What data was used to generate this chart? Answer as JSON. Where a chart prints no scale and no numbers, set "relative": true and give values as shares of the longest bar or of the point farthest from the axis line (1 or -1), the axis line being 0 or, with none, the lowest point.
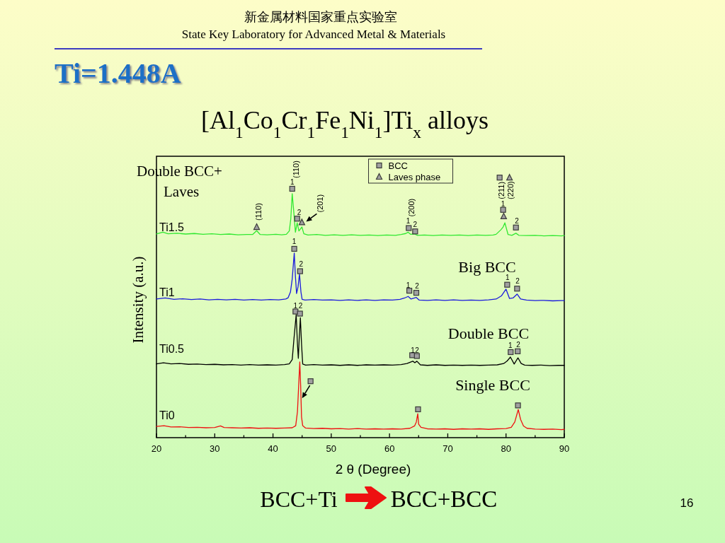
{
  "chart_data": {
    "type": "line",
    "relative": true,
    "title": "[Al$_{1}$Co$_{1}$Cr$_{1}$Fe$_{1}$Ni$_{1}$]Ti$_{x}$ alloys",
    "xlabel": "2 θ (Degree)",
    "ylabel": "Intensity (a.u.)",
    "xlim": [
      20,
      90
    ],
    "xticks": [
      20,
      {
        "value": 25,
        "label": null
      },
      30,
      {
        "value": 35,
        "label": null
      },
      40,
      {
        "value": 45,
        "label": null
      },
      50,
      {
        "value": 55,
        "label": null
      },
      60,
      {
        "value": 65,
        "label": null
      },
      70,
      {
        "value": 75,
        "label": null
      },
      80,
      {
        "value": 85,
        "label": null
      },
      90
    ],
    "legend": "top",
    "series": [
      {
        "name": "Ti1.5",
        "color": "#30e830",
        "x": [
          20,
          21.1,
          22,
          23.5,
          25,
          26.5,
          28,
          29.5,
          31,
          32.5,
          34,
          35.5,
          36.5,
          37.2,
          37.8,
          39,
          40.5,
          41.5,
          42.3,
          42.8,
          43.05,
          43.3,
          43.6,
          43.85,
          44.15,
          44.45,
          44.96,
          45.3,
          46,
          47.5,
          49,
          50.5,
          52,
          53.5,
          55,
          56.5,
          58,
          59.5,
          61,
          62,
          62.8,
          63.2,
          63.6,
          64.3,
          64.8,
          66,
          67.5,
          69,
          70.5,
          72,
          73.5,
          75,
          76.5,
          77.8,
          78.3,
          79.1,
          79.5,
          79.8,
          80.35,
          81,
          81.7,
          82.2,
          83.5,
          85,
          86.5,
          88,
          89.5,
          90
        ],
        "values": [
          0.783,
          0.79,
          0.784,
          0.786,
          0.783,
          0.785,
          0.782,
          0.784,
          0.781,
          0.783,
          0.78,
          0.781,
          0.781,
          0.796,
          0.781,
          0.78,
          0.782,
          0.78,
          0.782,
          0.795,
          0.84,
          0.938,
          0.86,
          0.79,
          0.826,
          0.795,
          0.81,
          0.784,
          0.779,
          0.781,
          0.778,
          0.78,
          0.778,
          0.78,
          0.778,
          0.779,
          0.777,
          0.779,
          0.778,
          0.781,
          0.785,
          0.79,
          0.782,
          0.783,
          0.778,
          0.779,
          0.777,
          0.779,
          0.778,
          0.779,
          0.777,
          0.779,
          0.778,
          0.779,
          0.782,
          0.799,
          0.81,
          0.826,
          0.781,
          0.778,
          0.786,
          0.778,
          0.777,
          0.778,
          0.776,
          0.777,
          0.776,
          0.777
        ]
      },
      {
        "name": "Ti1",
        "color": "#1a1adc",
        "x": [
          20,
          21.5,
          23,
          24.5,
          26,
          27.5,
          29,
          30.5,
          32,
          33.5,
          35,
          36.5,
          38,
          39.5,
          41,
          42.2,
          42.6,
          43.0,
          43.3,
          43.65,
          43.85,
          44.05,
          44.3,
          44.55,
          44.8,
          45.0,
          45.5,
          47,
          48.5,
          50,
          51.5,
          53,
          54.5,
          56,
          57.5,
          59,
          60.5,
          61.8,
          62.6,
          63.2,
          63.7,
          64.6,
          65.1,
          66.5,
          68,
          69.5,
          71,
          72.5,
          74,
          75.5,
          77,
          78.3,
          79.2,
          80.0,
          80.6,
          81.2,
          81.9,
          82.5,
          83.5,
          85,
          86.5,
          88,
          89.5,
          90
        ],
        "values": [
          0.533,
          0.537,
          0.532,
          0.534,
          0.531,
          0.533,
          0.53,
          0.532,
          0.53,
          0.532,
          0.529,
          0.531,
          0.529,
          0.531,
          0.53,
          0.533,
          0.538,
          0.56,
          0.61,
          0.71,
          0.62,
          0.554,
          0.58,
          0.629,
          0.56,
          0.532,
          0.529,
          0.531,
          0.529,
          0.53,
          0.528,
          0.53,
          0.528,
          0.53,
          0.528,
          0.53,
          0.529,
          0.532,
          0.537,
          0.543,
          0.533,
          0.539,
          0.529,
          0.528,
          0.53,
          0.528,
          0.53,
          0.528,
          0.529,
          0.528,
          0.53,
          0.533,
          0.545,
          0.571,
          0.535,
          0.537,
          0.552,
          0.533,
          0.529,
          0.527,
          0.528,
          0.526,
          0.527,
          0.527
        ]
      },
      {
        "name": "Ti0.5",
        "color": "#000000",
        "x": [
          20,
          21.2,
          22.5,
          24,
          25.5,
          27,
          28.5,
          30,
          31.5,
          33,
          34.5,
          36,
          37.5,
          39,
          40.5,
          42,
          42.8,
          43.3,
          43.6,
          43.98,
          44.2,
          44.35,
          44.5,
          44.7,
          44.9,
          45.1,
          45.6,
          47,
          48.5,
          50,
          51.5,
          53,
          54.5,
          56,
          57.5,
          59,
          60.5,
          62,
          63,
          64.0,
          64.35,
          64.7,
          65.3,
          66.5,
          68,
          69.5,
          71,
          72.5,
          74,
          75.5,
          77,
          78.5,
          79.6,
          80.2,
          80.75,
          81.4,
          82.05,
          82.6,
          83.2,
          84.5,
          86,
          87.5,
          89,
          90
        ],
        "values": [
          0.284,
          0.288,
          0.284,
          0.285,
          0.282,
          0.283,
          0.281,
          0.282,
          0.28,
          0.281,
          0.279,
          0.281,
          0.279,
          0.28,
          0.279,
          0.281,
          0.284,
          0.3,
          0.38,
          0.473,
          0.36,
          0.305,
          0.38,
          0.461,
          0.36,
          0.283,
          0.279,
          0.281,
          0.279,
          0.28,
          0.278,
          0.28,
          0.278,
          0.28,
          0.279,
          0.28,
          0.279,
          0.281,
          0.285,
          0.294,
          0.288,
          0.294,
          0.28,
          0.278,
          0.28,
          0.278,
          0.279,
          0.278,
          0.279,
          0.278,
          0.279,
          0.28,
          0.285,
          0.295,
          0.31,
          0.283,
          0.307,
          0.285,
          0.279,
          0.278,
          0.279,
          0.277,
          0.278,
          0.278
        ]
      },
      {
        "name": "Ti0",
        "color": "#ee1111",
        "x": [
          20,
          21.3,
          22.5,
          24,
          25.5,
          27,
          28.5,
          30,
          31.0,
          31.6,
          33,
          34.5,
          36,
          37.5,
          39,
          40.5,
          42,
          43.3,
          43.9,
          44.2,
          44.45,
          44.6,
          44.75,
          44.9,
          45.1,
          45.6,
          47,
          48.5,
          50,
          51.5,
          53,
          54.5,
          56,
          57.5,
          59,
          60.5,
          62,
          63.5,
          64.3,
          64.6,
          64.85,
          65.0,
          65.4,
          66.5,
          68,
          69.5,
          71,
          72.5,
          74,
          75.5,
          77,
          78.5,
          80,
          80.9,
          81.5,
          82.1,
          82.5,
          83,
          83.6,
          85,
          86.5,
          88,
          89.5,
          90
        ],
        "values": [
          0.043,
          0.046,
          0.041,
          0.042,
          0.039,
          0.04,
          0.038,
          0.039,
          0.045,
          0.039,
          0.038,
          0.037,
          0.038,
          0.036,
          0.037,
          0.036,
          0.037,
          0.038,
          0.046,
          0.1,
          0.22,
          0.291,
          0.2,
          0.08,
          0.046,
          0.037,
          0.035,
          0.036,
          0.034,
          0.035,
          0.033,
          0.035,
          0.033,
          0.034,
          0.033,
          0.034,
          0.033,
          0.036,
          0.045,
          0.06,
          0.092,
          0.052,
          0.04,
          0.034,
          0.033,
          0.034,
          0.032,
          0.034,
          0.033,
          0.034,
          0.032,
          0.034,
          0.035,
          0.04,
          0.06,
          0.108,
          0.07,
          0.045,
          0.036,
          0.033,
          0.032,
          0.033,
          0.031,
          0.032
        ]
      },
      {
        "name": "BCC",
        "type": "scatter",
        "marker": "square",
        "color": "#a0a0a0",
        "x": [
          78.9,
          43.3,
          44.15,
          63.3,
          64.4,
          79.5,
          81.7,
          43.65,
          44.65,
          63.4,
          64.6,
          80.2,
          81.9,
          43.86,
          44.63,
          63.9,
          64.7,
          80.8,
          82.0,
          46.45,
          64.9,
          82.05
        ],
        "values": [
          1.0,
          0.957,
          0.842,
          0.806,
          0.793,
          0.876,
          0.808,
          0.726,
          0.64,
          0.565,
          0.557,
          0.588,
          0.573,
          0.485,
          0.477,
          0.317,
          0.314,
          0.329,
          0.332,
          0.217,
          0.109,
          0.124
        ]
      },
      {
        "name": "Laves phase",
        "type": "scatter",
        "marker": "triangle",
        "color": "#a0a0a0",
        "x": [
          80.6,
          37.2,
          44.96,
          79.6
        ],
        "values": [
          1.0,
          0.81,
          0.828,
          0.851
        ]
      }
    ],
    "annotations": [
      "新金属材料国家重点实验室",
      "State Key Laboratory for Advanced Metal & Materials",
      "Ti=1.448A",
      "Double BCC+\nLaves",
      "Big BCC",
      "Double BCC",
      "Single BCC",
      "BCC+Ti",
      "BCC+BCC",
      "16",
      {
        "text": "(110)",
        "x": 37.2,
        "y": 0.81
      },
      {
        "text": "(110)",
        "x": 43.3,
        "y": 0.957
      },
      {
        "text": "1",
        "x": 43.3,
        "y": 0.973
      },
      {
        "text": "2",
        "x": 44.5,
        "y": 0.856
      },
      {
        "text": "(201)",
        "x": 44.96,
        "y": 0.828
      },
      {
        "text": "(200)",
        "x": 63.3,
        "y": 0.806
      },
      {
        "text": "1",
        "x": 63.2,
        "y": 0.823
      },
      {
        "text": "2",
        "x": 64.4,
        "y": 0.81
      },
      {
        "text": "(211)",
        "x": 79.5,
        "y": 0.876
      },
      {
        "text": "(220)",
        "x": 79.6,
        "y": 0.851
      },
      {
        "text": "1",
        "x": 79.5,
        "y": 0.889
      },
      {
        "text": "2",
        "x": 81.85,
        "y": 0.823
      },
      {
        "text": "1",
        "x": 43.65,
        "y": 0.745
      },
      {
        "text": "2",
        "x": 44.84,
        "y": 0.658
      },
      {
        "text": "1",
        "x": 63.2,
        "y": 0.576
      },
      {
        "text": "2",
        "x": 64.72,
        "y": 0.573
      },
      {
        "text": "1",
        "x": 80.26,
        "y": 0.607
      },
      {
        "text": "2",
        "x": 81.97,
        "y": 0.592
      },
      {
        "text": "1",
        "x": 43.86,
        "y": 0.497
      },
      {
        "text": "2",
        "x": 44.72,
        "y": 0.497
      },
      {
        "text": "1",
        "x": 63.99,
        "y": 0.326
      },
      {
        "text": "2",
        "x": 64.72,
        "y": 0.326
      },
      {
        "text": "1",
        "x": 80.75,
        "y": 0.345
      },
      {
        "text": "2",
        "x": 82.1,
        "y": 0.348
      }
    ]
  }
}
